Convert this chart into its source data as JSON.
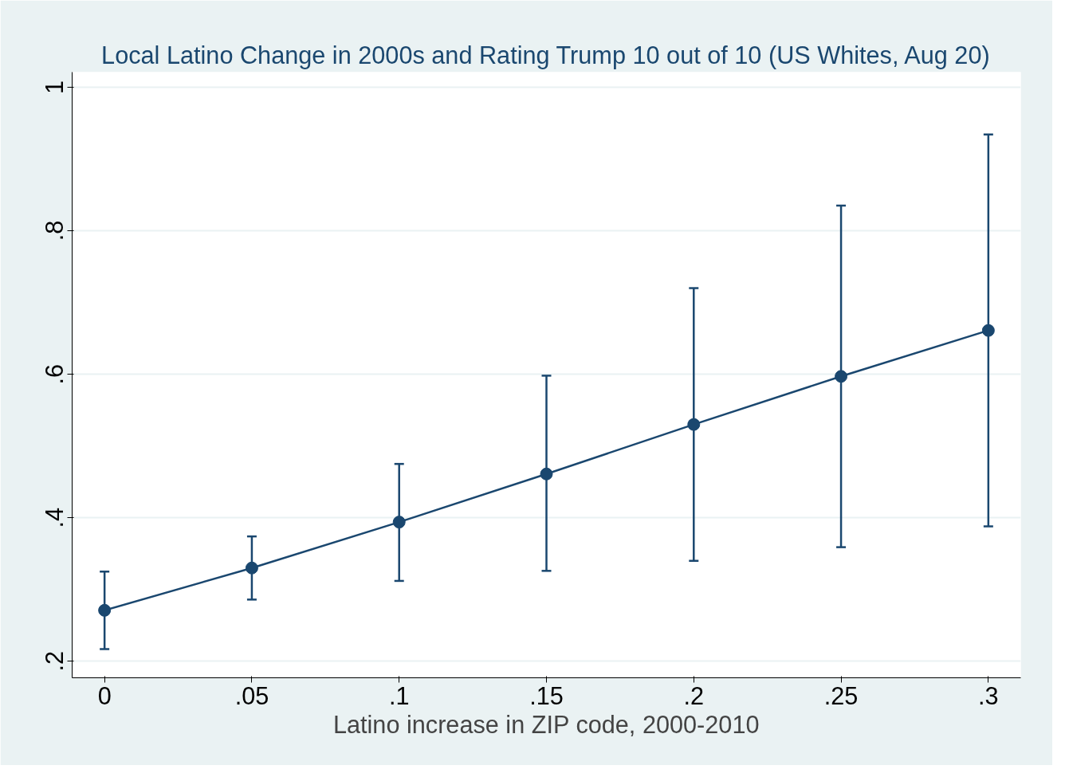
{
  "chart_data": {
    "type": "line",
    "title": "Local Latino Change in 2000s and Rating Trump 10 out of 10 (US Whites, Aug 20)",
    "xlabel": "Latino increase in ZIP code, 2000-2010",
    "x": [
      0,
      0.05,
      0.1,
      0.15,
      0.2,
      0.25,
      0.3
    ],
    "series": [
      {
        "color": "#1a476f",
        "values": [
          0.271,
          0.33,
          0.394,
          0.461,
          0.53,
          0.597,
          0.661
        ],
        "errors": [
          [
            0.217,
            0.325
          ],
          [
            0.286,
            0.374
          ],
          [
            0.312,
            0.475
          ],
          [
            0.326,
            0.598
          ],
          [
            0.34,
            0.72
          ],
          [
            0.359,
            0.835
          ],
          [
            0.388,
            0.934
          ]
        ]
      }
    ],
    "xlim": [
      -0.011,
      0.311
    ],
    "ylim": [
      0.177,
      1.021
    ],
    "xticks": [
      0,
      {
        "value": 0.05,
        "label": ".05"
      },
      {
        "value": 0.1,
        "label": ".1"
      },
      {
        "value": 0.15,
        "label": ".15"
      },
      {
        "value": 0.2,
        "label": ".2"
      },
      {
        "value": 0.25,
        "label": ".25"
      },
      {
        "value": 0.3,
        "label": ".3"
      }
    ],
    "yticks": [
      {
        "value": 0.2,
        "label": ".2"
      },
      {
        "value": 0.4,
        "label": ".4"
      },
      {
        "value": 0.6,
        "label": ".6"
      },
      {
        "value": 0.8,
        "label": ".8"
      },
      {
        "value": 1,
        "label": "1"
      }
    ],
    "grid": "y",
    "marker": "circle",
    "line_style": "solid"
  }
}
